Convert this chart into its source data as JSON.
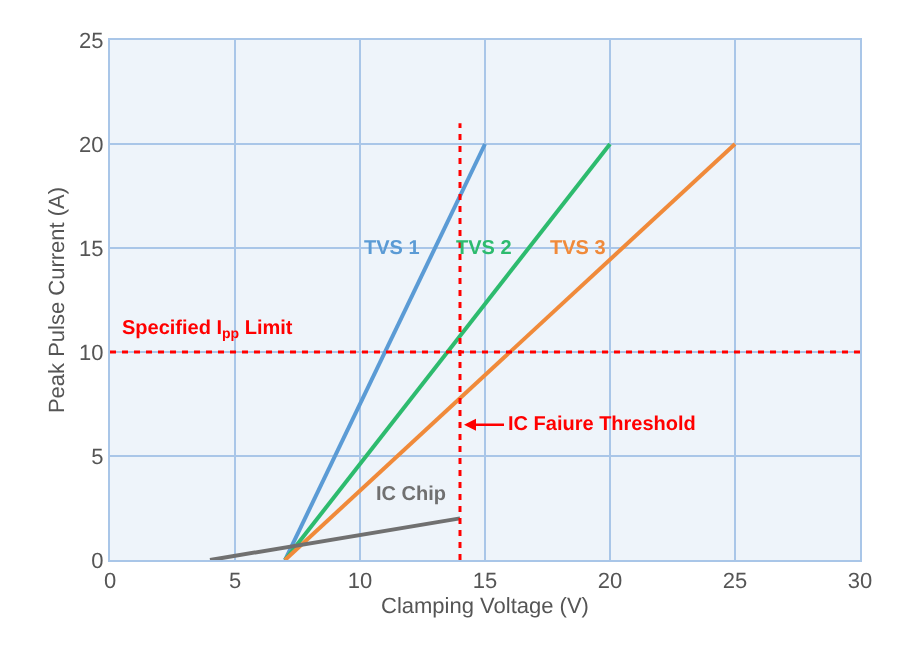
{
  "chart_data": {
    "type": "line",
    "xlabel": "Clamping Voltage (V)",
    "ylabel": "Peak Pulse Current (A)",
    "xlim": [
      0,
      30
    ],
    "xticks": [
      0,
      5,
      10,
      15,
      20,
      25,
      30
    ],
    "ylim": [
      0,
      25
    ],
    "yticks": [
      0,
      5,
      10,
      15,
      20,
      25
    ],
    "grid": true,
    "legend": false,
    "marker": "none",
    "line_style": "solid",
    "series": [
      {
        "name": "TVS 1",
        "color": "#5b9bd5",
        "x": [
          7,
          15
        ],
        "values": [
          0,
          20
        ]
      },
      {
        "name": "TVS 2",
        "color": "#2dbb6e",
        "x": [
          7,
          20
        ],
        "values": [
          0,
          20
        ]
      },
      {
        "name": "TVS 3",
        "color": "#f08a3a",
        "x": [
          7,
          25
        ],
        "values": [
          0,
          20
        ]
      },
      {
        "name": "IC Chip",
        "color": "#707070",
        "x": [
          4,
          14
        ],
        "values": [
          0,
          2
        ]
      }
    ],
    "ref_lines": [
      {
        "axis": "y",
        "value": 10,
        "label": "Specified I$_{pp}$ Limit",
        "color": "#ff0000",
        "line_style": "dotted"
      },
      {
        "axis": "x",
        "value": 14,
        "label": "IC Faiure Threshold",
        "color": "#ff0000",
        "line_style": "dotted"
      }
    ]
  }
}
